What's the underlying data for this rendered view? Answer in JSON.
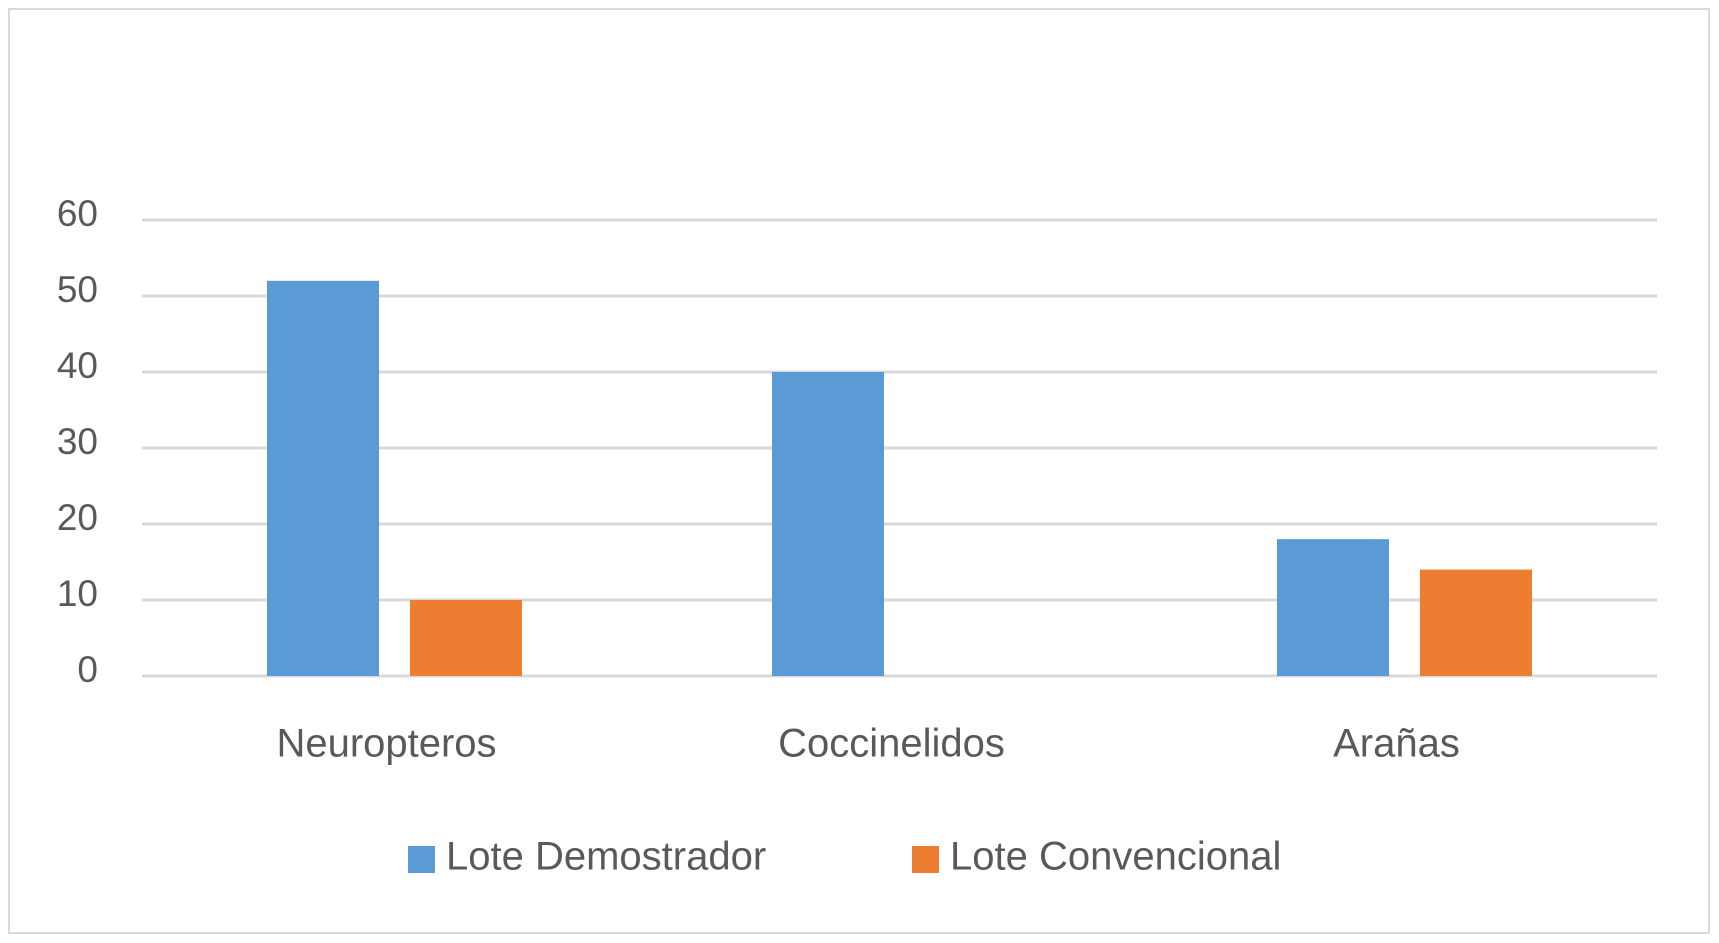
{
  "chart_data": {
    "type": "bar",
    "categories": [
      "Neuropteros",
      "Coccinelidos",
      "Arañas"
    ],
    "series": [
      {
        "name": "Lote Demostrador",
        "color": "#5b9bd5",
        "values": [
          52,
          40,
          18
        ]
      },
      {
        "name": "Lote Convencional",
        "color": "#ed7d31",
        "values": [
          10,
          0,
          14
        ]
      }
    ],
    "ylim": [
      0,
      60
    ],
    "yticks": [
      0,
      10,
      20,
      30,
      40,
      50,
      60
    ],
    "grid": true,
    "legend": "bottom"
  }
}
